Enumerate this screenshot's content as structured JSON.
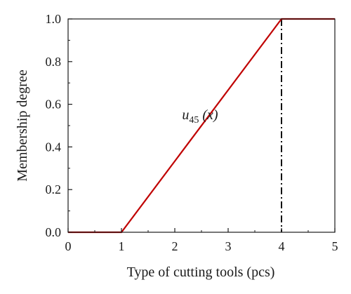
{
  "chart_data": {
    "type": "line",
    "xlabel": "Type of cutting tools (pcs)",
    "ylabel": "Membership degree",
    "xlim": [
      0,
      5
    ],
    "ylim": [
      0,
      1
    ],
    "x_ticks": [
      "0",
      "1",
      "2",
      "3",
      "4",
      "5"
    ],
    "y_ticks": [
      "0.0",
      "0.2",
      "0.4",
      "0.6",
      "0.8",
      "1.0"
    ],
    "grid": false,
    "series": [
      {
        "color": "#c00000",
        "x": [
          0,
          1,
          4,
          5
        ],
        "y": [
          0,
          0,
          1,
          1
        ]
      }
    ],
    "reference_lines": [
      {
        "orientation": "vertical",
        "x": 4,
        "style": "dash-dot",
        "color": "#111111"
      }
    ],
    "annotation": {
      "main": "u",
      "sub": "45",
      "rest": " (x)",
      "x": 2.4,
      "y": 0.53
    }
  }
}
